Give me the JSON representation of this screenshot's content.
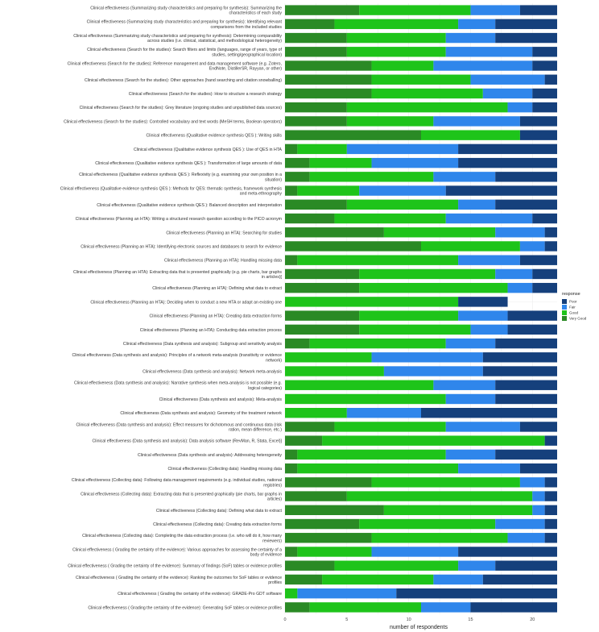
{
  "chart_data": {
    "type": "bar",
    "orientation": "horizontal",
    "stacked": true,
    "xlabel": "number of respondents",
    "ylabel": "",
    "xlim": [
      0,
      22
    ],
    "xticks": [
      0,
      5,
      10,
      15,
      20
    ],
    "legend": {
      "title": "response",
      "position": "right",
      "entries": [
        "Poor",
        "Fair",
        "Good",
        "Very Good"
      ],
      "colors": [
        "#15407c",
        "#2f86eb",
        "#1ec41a",
        "#2a8a25"
      ]
    },
    "stack_order": [
      "Very Good",
      "Good",
      "Fair",
      "Poor"
    ],
    "categories": [
      "Clinical effectiveness (Summarizing study characteristics and preparing for synthesis): Summarizing the characteristics of each study",
      "Clinical effectiveness (Summarizing study characteristics and preparing for synthesis): Identifying relevant comparisons from the included studies",
      "Clinical effectiveness (Summarizing study characteristics and preparing for synthesis): Determining comparability across studies (i.e. clinical, statistical, and methodological heterogeneity)",
      "Clinical effectiveness (Search for the studies): Search filters and limits (languages, range of years, type of studies, setting/geographical location)",
      "Clinical effectiveness (Search for the studies): Reference management and data management software (e.g. Zotero, EndNote, DistillerSR, Rayyan, or other)",
      "Clinical effectiveness (Search for the studies): Other approaches (hand searching and citation snowballing)",
      "Clinical effectiveness (Search for the studies): How to structure a research strategy",
      "Clinical effectiveness (Search for the studies): Grey literature (ongoing studies and unpublished data sources)",
      "Clinical effectiveness (Search for the studies): Controlled vocabulary and text words (MeSH terms, Boolean operators)",
      "Clinical effectiveness (Qualitative evidence synthesis QES ): Writing skills",
      "Clinical effectiveness (Qualitative evidence synthesis QES ): Use of QES in HTA",
      "Clinical effectiveness (Qualitative evidence synthesis QES ): Transformation of large amounts of data",
      "Clinical effectiveness (Qualitative evidence synthesis QES ): Reflexivity (e.g. examining your own position in a situation)",
      "Clinical effectiveness (Qualitative evidence synthesis QES ): Methods for QES: thematic synthesis, framework synthesis and meta-ethnography",
      "Clinical effectiveness (Qualitative evidence synthesis QES ): Balanced description and interpretation",
      "Clinical effectiveness (Planning an HTA): Writing a structured research question according to the PICO acronym",
      "Clinical effectiveness (Planning an HTA): Searching for studies",
      "Clinical effectiveness (Planning an HTA): Identifying electronic sources and databases to search for evidence",
      "Clinical effectiveness (Planning an HTA): Handling missing data",
      "Clinical effectiveness (Planning an HTA): Extracting data that is presented graphically (e.g. pie charts, bar graphs in articles)[",
      "Clinical effectiveness (Planning an HTA): Defining what data to extract",
      "Clinical effectiveness (Planning an HTA): Deciding when to conduct a new HTA or adapt an existing one",
      "Clinical effectiveness (Planning an HTA): Creating data extraction forms",
      "Clinical effectiveness (Planning an HTA): Conducting data extraction process",
      "Clinical effectiveness (Data synthesis and analysis): Subgroup and sensitivity analysis",
      "Clinical effectiveness (Data synthesis and analysis): Principles of a network meta-analysis (transitivity or evidence network)",
      "Clinical effectiveness (Data synthesis and analysis): Network meta-analysis",
      "Clinical effectiveness (Data synthesis and analysis): Narrative synthesis when meta-analysis is not possible (e.g. logical categories)",
      "Clinical effectiveness (Data synthesis and analysis): Meta-analysis",
      "Clinical effectiveness (Data synthesis and analysis): Geometry of the treatment network",
      "Clinical effectiveness (Data synthesis and analysis): Effect measures for dichotomous and continuous data (risk ration, mean difference, etc.)",
      "Clinical effectiveness (Data synthesis and analysis): Data analysis software (RevMan, R, Stata, Excel)]",
      "Clinical effectiveness (Data synthesis and analysis): Addressing heterogeneity",
      "Clinical effectiveness (Collecting data): Handling missing data",
      "Clinical effectiveness (Collecting data): Following data management requirements (e.g. individual studies, national registries)",
      "Clinical effectiveness (Collecting data): Extracting data that is presented graphically (pie charts, bar graphs in articles)",
      "Clinical effectiveness (Collecting data): Defining what data to extract",
      "Clinical effectiveness (Collecting data): Creating data extraction forms",
      "Clinical effectiveness (Collecting data): Completing the data extraction process (i.e. who will do it, how many reviewers)",
      "Clinical effectiveness ( Grading the certainty of the evidence): Various approaches for assessing the certainty of a body of evidence",
      "Clinical effectiveness ( Grading the certainty of the evidence): Summary of findings (SoF) tables or evidence profiles",
      "Clinical effectiveness ( Grading the certainty of the evidence): Ranking the outcomes for SoF tables or evidence profiles",
      "Clinical effectiveness ( Grading the certainty of the evidence): GRADE-Pro GDT software",
      "Clinical effectiveness ( Grading the certainty of the evidence): Generating SoF tables or evidence profiles"
    ],
    "series": [
      {
        "name": "Very Good",
        "values": [
          6,
          4,
          5,
          5,
          7,
          7,
          7,
          5,
          5,
          11,
          1,
          2,
          2,
          1,
          5,
          4,
          8,
          11,
          1,
          6,
          6,
          0,
          6,
          6,
          2,
          0,
          0,
          0,
          0,
          0,
          4,
          3,
          1,
          1,
          7,
          5,
          8,
          6,
          7,
          1,
          4,
          3,
          0,
          2
        ]
      },
      {
        "name": "Good",
        "values": [
          9,
          10,
          8,
          8,
          5,
          8,
          9,
          13,
          7,
          8,
          4,
          5,
          10,
          5,
          9,
          9,
          9,
          8,
          13,
          11,
          12,
          14,
          8,
          9,
          11,
          7,
          8,
          12,
          13,
          5,
          9,
          18,
          12,
          13,
          12,
          15,
          12,
          11,
          11,
          6,
          10,
          9,
          1,
          9
        ]
      },
      {
        "name": "Fair",
        "values": [
          4,
          3,
          4,
          7,
          8,
          6,
          4,
          2,
          7,
          0,
          9,
          7,
          5,
          7,
          3,
          7,
          4,
          2,
          5,
          3,
          2,
          0,
          4,
          3,
          4,
          9,
          8,
          5,
          4,
          6,
          6,
          0,
          4,
          5,
          2,
          1,
          1,
          4,
          3,
          7,
          3,
          4,
          8,
          4
        ]
      },
      {
        "name": "Poor",
        "values": [
          3,
          5,
          5,
          2,
          2,
          1,
          2,
          2,
          3,
          3,
          8,
          8,
          5,
          9,
          5,
          2,
          1,
          1,
          3,
          2,
          2,
          4,
          4,
          4,
          5,
          6,
          6,
          5,
          5,
          11,
          3,
          1,
          5,
          3,
          1,
          1,
          1,
          1,
          1,
          8,
          5,
          6,
          13,
          7
        ]
      }
    ]
  }
}
